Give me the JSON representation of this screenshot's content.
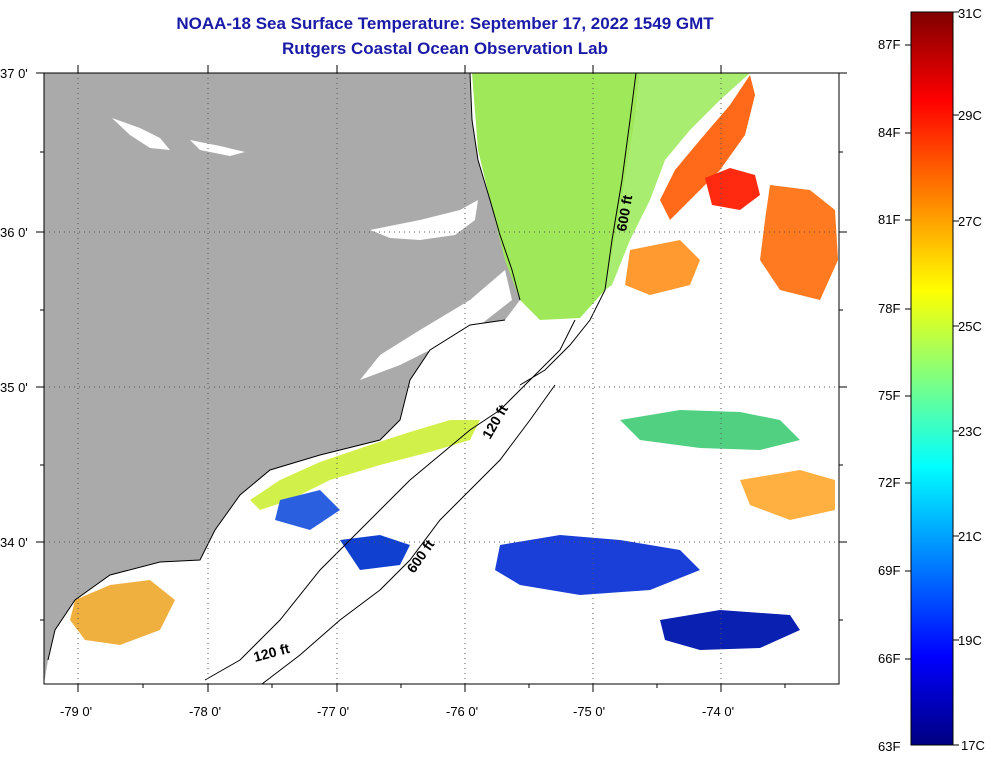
{
  "header": {
    "title": "NOAA-18 Sea Surface Temperature:  September 17, 2022 1549 GMT",
    "subtitle": "Rutgers Coastal Ocean Observation Lab"
  },
  "map": {
    "lat_labels": [
      "37 0'",
      "36 0'",
      "35 0'",
      "34 0'"
    ],
    "lon_labels": [
      "-79 0'",
      "-78 0'",
      "-77 0'",
      "-76 0'",
      "-75 0'",
      "-74 0'"
    ],
    "contour_labels": {
      "c600_north": "600 ft",
      "c120_mid": "120 ft",
      "c600_south": "600 ft",
      "c120_south": "120 ft"
    }
  },
  "colorbar": {
    "fahrenheit_labels": [
      "87F",
      "84F",
      "81F",
      "78F",
      "75F",
      "72F",
      "69F",
      "66F",
      "63F"
    ],
    "celsius_labels": [
      "31C",
      "29C",
      "27C",
      "25C",
      "23C",
      "21C",
      "19C",
      "17C"
    ],
    "colors": [
      "#800000",
      "#ff0000",
      "#ff8000",
      "#ffff00",
      "#80ff80",
      "#00ffff",
      "#0080ff",
      "#0000ff",
      "#000080"
    ]
  },
  "colors": {
    "land": "#aaaaaa",
    "title": "#1a1aa8",
    "water_nodata": "#ffffff"
  }
}
